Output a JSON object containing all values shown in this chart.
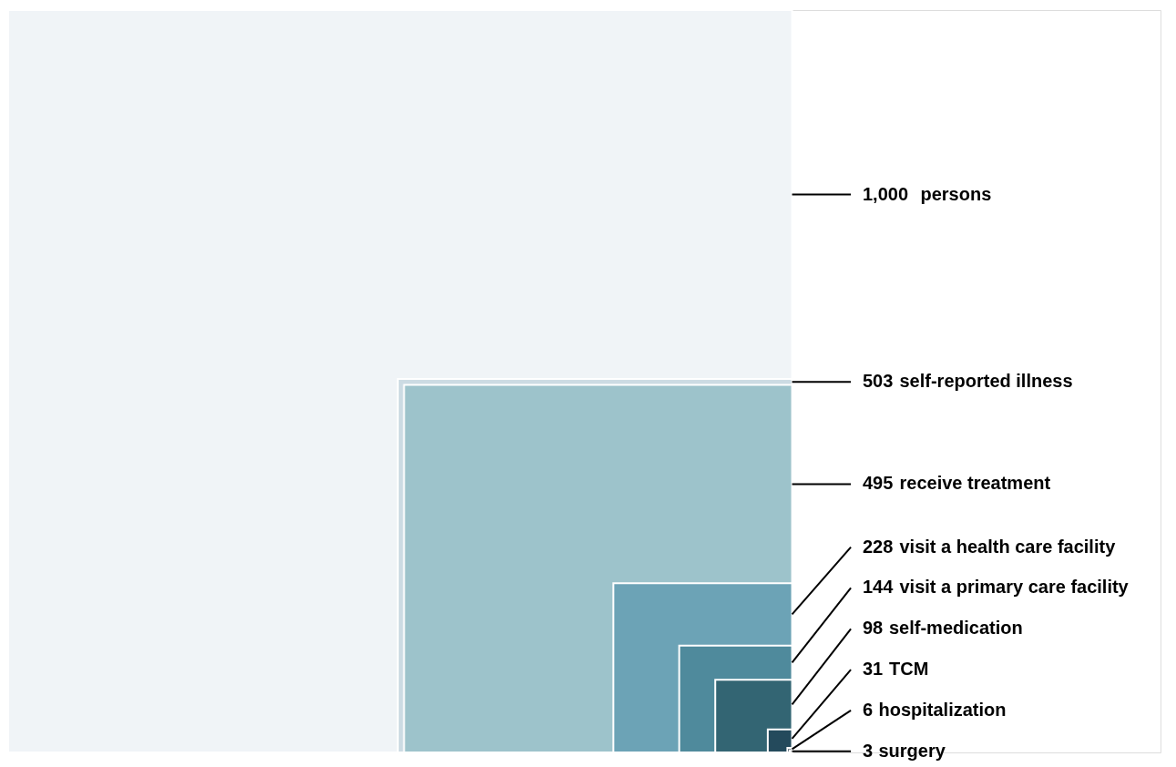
{
  "chart_data": {
    "type": "other",
    "categories": [
      "persons",
      "self-reported illness",
      "receive treatment",
      "visit a health care facility",
      "visit a primary care facility",
      "self-medication",
      "TCM",
      "hospitalization",
      "surgery"
    ],
    "values": [
      1000,
      503,
      495,
      228,
      144,
      98,
      31,
      6,
      3
    ],
    "value_labels": [
      "1,000",
      "503",
      "495",
      "228",
      "144",
      "98",
      "31",
      "6",
      "3"
    ],
    "colors": [
      "#f0f4f7",
      "#ccdbe3",
      "#9dc3cb",
      "#6ca3b6",
      "#4f8a9c",
      "#336573",
      "#244a5c",
      "#1e3344",
      "#1a2a38"
    ]
  }
}
